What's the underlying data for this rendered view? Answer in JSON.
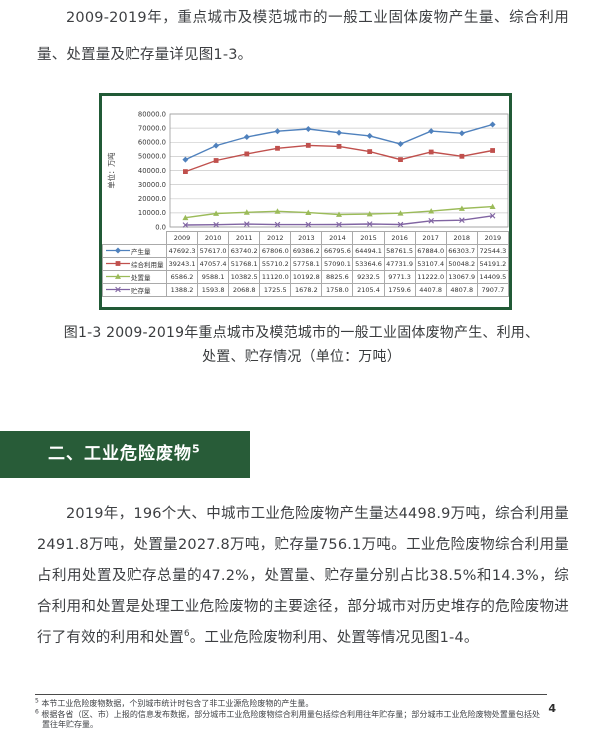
{
  "page": {
    "number": "4"
  },
  "intro_paragraph": "2009-2019年，重点城市及模范城市的一般工业固体废物产生量、综合利用量、处置量及贮存量详见图1-3。",
  "figure": {
    "caption_line1": "图1-3 2009-2019年重点城市及模范城市的一般工业固体废物产生、利用、",
    "caption_line2": "处置、贮存情况（单位：万吨）"
  },
  "chart_data": {
    "type": "line",
    "title": "",
    "xlabel": "",
    "ylabel": "单位：万吨",
    "ylim": [
      0,
      80000
    ],
    "ytick_step": 10000,
    "grid": true,
    "legend_position": "table-left",
    "categories": [
      "2009",
      "2010",
      "2011",
      "2012",
      "2013",
      "2014",
      "2015",
      "2016",
      "2017",
      "2018",
      "2019"
    ],
    "series": [
      {
        "key": "production",
        "name": "产生量",
        "color": "#4F81BD",
        "marker": "diamond",
        "values": [
          47692.3,
          57617.0,
          63740.2,
          67806.0,
          69386.2,
          66795.6,
          64494.1,
          58761.5,
          67884.0,
          66303.7,
          72544.3
        ]
      },
      {
        "key": "utilization",
        "name": "综合利用量",
        "color": "#C0504D",
        "marker": "square",
        "values": [
          39243.1,
          47057.4,
          51768.1,
          55710.2,
          57758.1,
          57090.1,
          53364.6,
          47731.9,
          53107.4,
          50048.2,
          54191.2
        ]
      },
      {
        "key": "disposal",
        "name": "处置量",
        "color": "#9BBB59",
        "marker": "triangle",
        "values": [
          6586.2,
          9588.1,
          10382.5,
          11120.0,
          10192.8,
          8825.6,
          9232.5,
          9771.3,
          11222.0,
          13067.9,
          14409.5
        ]
      },
      {
        "key": "storage",
        "name": "贮存量",
        "color": "#8064A2",
        "marker": "x",
        "values": [
          1388.2,
          1593.8,
          2068.8,
          1725.5,
          1678.2,
          1758.0,
          2105.4,
          1759.6,
          4407.8,
          4807.8,
          7907.7
        ]
      }
    ]
  },
  "section_heading": {
    "text": "二、工业危险废物",
    "superscript": "5"
  },
  "body_paragraph": {
    "part1": "2019年，196个大、中城市工业危险废物产生量达4498.9万吨，综合利用量2491.8万吨，处置量2027.8万吨，贮存量756.1万吨。工业危险废物综合利用量占利用处置及贮存总量的47.2%，处置量、贮存量分别占比38.5%和14.3%，综合利用和处置是处理工业危险废物的主要途径，部分城市对历史堆存的危险废物进行了有效的利用和处置",
    "sup": "6",
    "part2": "。工业危险废物利用、处置等情况见图1-4。"
  },
  "footnotes": [
    {
      "marker": "5",
      "text": "本节工业危险废物数据，个别城市统计时包含了非工业源危险废物的产生量。"
    },
    {
      "marker": "6",
      "text": "根据各省（区、市）上报的信息发布数据，部分城市工业危险废物综合利用量包括综合利用往年贮存量；部分城市工业危险废物处置量包括处置往年贮存量。"
    }
  ]
}
